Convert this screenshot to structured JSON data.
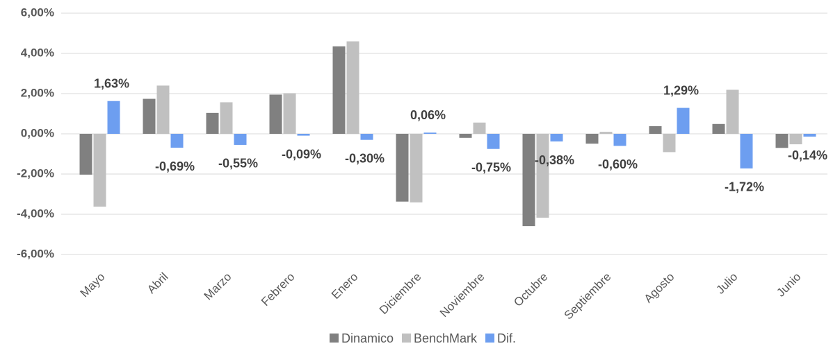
{
  "chart_data": {
    "type": "bar",
    "categories": [
      "Mayo",
      "Abril",
      "Marzo",
      "Febrero",
      "Enero",
      "Diciembre",
      "Noviembre",
      "Octubre",
      "Septiembre",
      "Agosto",
      "Julio",
      "Junio"
    ],
    "series": [
      {
        "name": "Dinamico",
        "color": "#808080",
        "values": [
          -2.03,
          1.74,
          1.04,
          1.95,
          4.35,
          -3.37,
          -0.2,
          -4.59,
          -0.49,
          0.38,
          0.49,
          -0.7
        ]
      },
      {
        "name": "BenchMark",
        "color": "#c0c0c0",
        "values": [
          -3.62,
          2.4,
          1.57,
          2.02,
          4.6,
          -3.41,
          0.56,
          -4.17,
          0.1,
          -0.91,
          2.19,
          -0.52
        ]
      },
      {
        "name": "Dif.",
        "color": "#6d9ef0",
        "values": [
          1.63,
          -0.69,
          -0.55,
          -0.09,
          -0.3,
          0.06,
          -0.75,
          -0.38,
          -0.6,
          1.29,
          -1.72,
          -0.14
        ],
        "value_labels": [
          "1,63%",
          "-0,69%",
          "-0,55%",
          "-0,09%",
          "-0,30%",
          "0,06%",
          "-0,75%",
          "-0,38%",
          "-0,60%",
          "1,29%",
          "-1,72%",
          "-0,14%"
        ]
      }
    ],
    "ylim": [
      -6,
      6
    ],
    "yticks": [
      {
        "value": -6,
        "label": "-6,00%"
      },
      {
        "value": -4,
        "label": "-4,00%"
      },
      {
        "value": -2,
        "label": "-2,00%"
      },
      {
        "value": 0,
        "label": "0,00%"
      },
      {
        "value": 2,
        "label": "2,00%"
      },
      {
        "value": 4,
        "label": "4,00%"
      },
      {
        "value": 6,
        "label": "6,00%"
      }
    ],
    "grid": true,
    "legend": "bottom"
  }
}
